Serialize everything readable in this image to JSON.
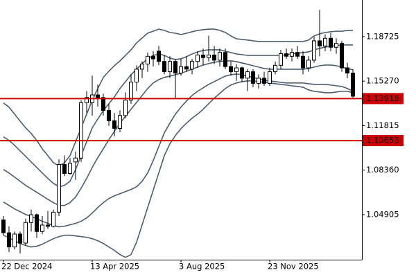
{
  "chart_data": {
    "type": "candlestick",
    "categories": [
      "22 Dec 2024",
      null,
      null,
      null,
      null,
      null,
      null,
      null,
      null,
      null,
      null,
      null,
      null,
      null,
      null,
      null,
      "13 Apr 2025",
      null,
      null,
      null,
      null,
      null,
      null,
      null,
      null,
      null,
      null,
      null,
      null,
      null,
      null,
      null,
      "3 Aug 2025",
      null,
      null,
      null,
      null,
      null,
      null,
      null,
      null,
      null,
      null,
      null,
      null,
      null,
      null,
      null,
      "23 Nov 2025",
      null,
      null,
      null,
      null,
      null,
      null,
      null,
      null,
      null,
      null,
      null,
      null,
      null,
      null,
      null
    ],
    "ohlc": {
      "open": [
        1.045,
        1.035,
        1.024,
        1.034,
        1.027,
        1.043,
        1.049,
        1.036,
        1.041,
        1.04,
        1.051,
        1.088,
        1.081,
        1.09,
        1.093,
        1.136,
        1.136,
        1.142,
        1.14,
        1.13,
        1.122,
        1.116,
        1.126,
        1.138,
        1.152,
        1.162,
        1.166,
        1.172,
        1.176,
        1.168,
        1.16,
        1.168,
        1.159,
        1.164,
        1.162,
        1.168,
        1.173,
        1.171,
        1.173,
        1.169,
        1.175,
        1.164,
        1.16,
        1.163,
        1.155,
        1.16,
        1.151,
        1.155,
        1.151,
        1.16,
        1.165,
        1.174,
        1.172,
        1.175,
        1.172,
        1.163,
        1.169,
        1.184,
        1.18,
        1.186,
        1.179,
        1.182,
        1.163,
        1.159
      ],
      "high": [
        1.048,
        1.04,
        1.036,
        1.036,
        1.046,
        1.053,
        1.05,
        1.048,
        1.052,
        1.053,
        1.092,
        1.095,
        1.093,
        1.098,
        1.138,
        1.145,
        1.157,
        1.15,
        1.143,
        1.135,
        1.128,
        1.13,
        1.144,
        1.158,
        1.165,
        1.168,
        1.175,
        1.176,
        1.18,
        1.173,
        1.172,
        1.17,
        1.17,
        1.172,
        1.17,
        1.176,
        1.178,
        1.188,
        1.18,
        1.178,
        1.178,
        1.168,
        1.166,
        1.164,
        1.162,
        1.162,
        1.158,
        1.16,
        1.163,
        1.168,
        1.177,
        1.178,
        1.178,
        1.18,
        1.176,
        1.172,
        1.187,
        1.208,
        1.189,
        1.19,
        1.186,
        1.184,
        1.167,
        1.162
      ],
      "low": [
        1.033,
        1.02,
        1.022,
        1.019,
        1.025,
        1.036,
        1.031,
        1.034,
        1.038,
        1.039,
        1.048,
        1.079,
        1.08,
        1.076,
        1.09,
        1.128,
        1.126,
        1.133,
        1.126,
        1.118,
        1.11,
        1.113,
        1.124,
        1.135,
        1.145,
        1.155,
        1.16,
        1.164,
        1.165,
        1.158,
        1.155,
        1.139,
        1.157,
        1.16,
        1.158,
        1.163,
        1.165,
        1.168,
        1.166,
        1.164,
        1.162,
        1.157,
        1.153,
        1.152,
        1.145,
        1.148,
        1.147,
        1.149,
        1.149,
        1.158,
        1.162,
        1.17,
        1.168,
        1.17,
        1.158,
        1.16,
        1.167,
        1.172,
        1.176,
        1.176,
        1.174,
        1.16,
        1.155,
        1.139
      ],
      "close": [
        1.035,
        1.024,
        1.034,
        1.027,
        1.043,
        1.049,
        1.036,
        1.041,
        1.04,
        1.051,
        1.088,
        1.081,
        1.089,
        1.093,
        1.136,
        1.14,
        1.142,
        1.14,
        1.13,
        1.122,
        1.116,
        1.126,
        1.138,
        1.152,
        1.162,
        1.166,
        1.172,
        1.17,
        1.168,
        1.16,
        1.168,
        1.159,
        1.164,
        1.162,
        1.168,
        1.173,
        1.171,
        1.173,
        1.169,
        1.175,
        1.164,
        1.16,
        1.163,
        1.155,
        1.16,
        1.151,
        1.155,
        1.151,
        1.16,
        1.165,
        1.174,
        1.172,
        1.175,
        1.172,
        1.163,
        1.169,
        1.184,
        1.18,
        1.186,
        1.179,
        1.182,
        1.163,
        1.159,
        1.141
      ]
    },
    "up_color": "#ffffff",
    "down_color": "#000000",
    "bands": [
      {
        "color": "#4b5d6e",
        "values": [
          1.1357,
          1.1325,
          1.1271,
          1.1217,
          1.1164,
          1.1121,
          1.1067,
          1.1002,
          1.0949,
          1.0895,
          1.0868,
          1.0895,
          1.0949,
          1.1056,
          1.1164,
          1.1271,
          1.1378,
          1.147,
          1.1556,
          1.1604,
          1.1647,
          1.1684,
          1.1727,
          1.177,
          1.1824,
          1.1862,
          1.1899,
          1.1915,
          1.1931,
          1.1921,
          1.1905,
          1.1899,
          1.1889,
          1.1899,
          1.191,
          1.1921,
          1.1926,
          1.1931,
          1.1931,
          1.1921,
          1.1905,
          1.1878,
          1.1856,
          1.1851,
          1.1846,
          1.184,
          1.1835,
          1.1835,
          1.1835,
          1.1835,
          1.1835,
          1.1835,
          1.1835,
          1.1835,
          1.1835,
          1.1846,
          1.1878,
          1.1894,
          1.1905,
          1.191,
          1.1915,
          1.1915,
          1.1921,
          1.1921
        ]
      },
      {
        "color": "#4b5d6e",
        "values": [
          1.1094,
          1.1067,
          1.1029,
          1.0986,
          1.0943,
          1.09,
          1.0857,
          1.0814,
          1.0772,
          1.0734,
          1.0707,
          1.0718,
          1.075,
          1.0841,
          1.0949,
          1.1056,
          1.1164,
          1.1233,
          1.1298,
          1.1352,
          1.1405,
          1.147,
          1.1523,
          1.1577,
          1.162,
          1.1663,
          1.1701,
          1.1727,
          1.1738,
          1.1727,
          1.1706,
          1.1695,
          1.1701,
          1.1717,
          1.1738,
          1.1754,
          1.1765,
          1.177,
          1.177,
          1.177,
          1.176,
          1.1749,
          1.1738,
          1.1733,
          1.1727,
          1.1727,
          1.1727,
          1.1727,
          1.1727,
          1.1727,
          1.1727,
          1.1733,
          1.1738,
          1.1743,
          1.1749,
          1.1754,
          1.177,
          1.1781,
          1.1792,
          1.1797,
          1.1803,
          1.1808,
          1.1808,
          1.1808
        ]
      },
      {
        "color": "#4b5d6e",
        "values": [
          1.0841,
          1.0814,
          1.0782,
          1.075,
          1.0718,
          1.0691,
          1.0664,
          1.0637,
          1.061,
          1.0584,
          1.0562,
          1.0562,
          1.0584,
          1.0627,
          1.0696,
          1.0772,
          1.0857,
          1.0933,
          1.1002,
          1.1072,
          1.1137,
          1.1201,
          1.1255,
          1.1309,
          1.1362,
          1.1416,
          1.147,
          1.1513,
          1.1539,
          1.1556,
          1.1566,
          1.1577,
          1.1588,
          1.1604,
          1.162,
          1.1636,
          1.1652,
          1.1663,
          1.1674,
          1.1679,
          1.1684,
          1.1684,
          1.1679,
          1.1668,
          1.1658,
          1.1647,
          1.1636,
          1.1625,
          1.162,
          1.162,
          1.162,
          1.162,
          1.162,
          1.162,
          1.162,
          1.1625,
          1.1636,
          1.1647,
          1.1652,
          1.1652,
          1.1647,
          1.1636,
          1.1625,
          1.1615
        ]
      },
      {
        "color": "#4b5d6e",
        "values": [
          1.0589,
          1.0562,
          1.0535,
          1.0514,
          1.0492,
          1.0476,
          1.046,
          1.0439,
          1.0423,
          1.0406,
          1.0396,
          1.0401,
          1.0412,
          1.0423,
          1.0439,
          1.0465,
          1.0503,
          1.0546,
          1.0584,
          1.0616,
          1.0637,
          1.0653,
          1.067,
          1.0686,
          1.0707,
          1.075,
          1.0814,
          1.0911,
          1.1019,
          1.1126,
          1.1201,
          1.1271,
          1.1325,
          1.1373,
          1.1416,
          1.1448,
          1.1475,
          1.1502,
          1.1523,
          1.1545,
          1.1566,
          1.1577,
          1.1582,
          1.1577,
          1.1566,
          1.1556,
          1.1545,
          1.1534,
          1.1529,
          1.1523,
          1.1518,
          1.1513,
          1.1513,
          1.1513,
          1.1513,
          1.1507,
          1.1502,
          1.1502,
          1.1502,
          1.1497,
          1.1491,
          1.1486,
          1.147,
          1.1448
        ]
      },
      {
        "color": "#4b5d6e",
        "values": [
          1.0331,
          1.031,
          1.0288,
          1.0267,
          1.0251,
          1.024,
          1.0245,
          1.0261,
          1.0283,
          1.0304,
          1.032,
          1.0331,
          1.0331,
          1.0326,
          1.032,
          1.0315,
          1.0304,
          1.0288,
          1.0267,
          1.024,
          1.0213,
          1.0181,
          1.0159,
          1.0181,
          1.0277,
          1.0412,
          1.0546,
          1.068,
          1.0814,
          1.0949,
          1.104,
          1.1105,
          1.1158,
          1.1201,
          1.1239,
          1.1271,
          1.1309,
          1.1352,
          1.1395,
          1.1432,
          1.147,
          1.1497,
          1.1513,
          1.1523,
          1.1529,
          1.1529,
          1.1523,
          1.1518,
          1.1513,
          1.1507,
          1.1502,
          1.1497,
          1.1491,
          1.1486,
          1.148,
          1.1459,
          1.1448,
          1.1443,
          1.1437,
          1.1437,
          1.1443,
          1.1448,
          1.1448,
          1.1437
        ]
      }
    ],
    "levels": [
      {
        "value": 1.13916,
        "color": "#cc0000"
      },
      {
        "value": 1.10653,
        "color": "#cc0000"
      }
    ],
    "ylim": [
      1.0141,
      1.2157
    ],
    "yticks": [
      1.18725,
      {
        "value": 1.1527,
        "label": "1.15270"
      },
      1.11815,
      {
        "value": 1.0836,
        "label": "1.08360"
      },
      1.04905
    ]
  }
}
